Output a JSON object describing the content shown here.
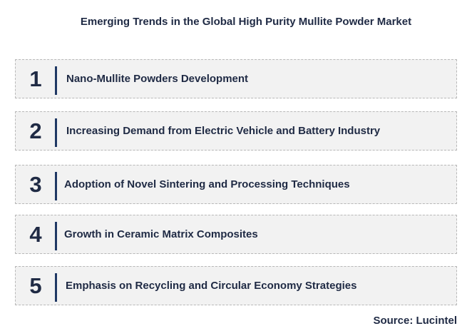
{
  "title": "Emerging Trends in the Global High Purity Mullite Powder Market",
  "trends": [
    {
      "number": "1",
      "label": "Nano-Mullite Powders Development"
    },
    {
      "number": "2",
      "label": "Increasing Demand from Electric Vehicle and Battery Industry"
    },
    {
      "number": "3",
      "label": "Adoption of Novel Sintering and Processing Techniques"
    },
    {
      "number": "4",
      "label": "Growth in Ceramic Matrix Composites"
    },
    {
      "number": "5",
      "label": "Emphasis on Recycling and Circular Economy Strategies"
    }
  ],
  "source": "Source: Lucintel",
  "colors": {
    "text": "#1f2a44",
    "accent_bar": "#1f3864",
    "box_fill": "#f2f2f2",
    "box_border": "#b8b8b8"
  }
}
